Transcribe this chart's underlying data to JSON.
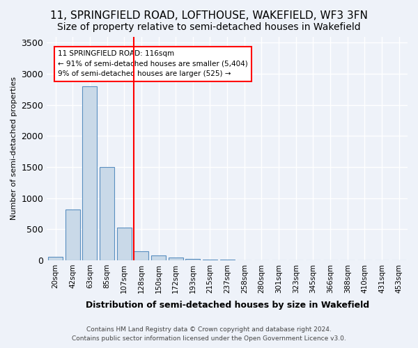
{
  "title": "11, SPRINGFIELD ROAD, LOFTHOUSE, WAKEFIELD, WF3 3FN",
  "subtitle": "Size of property relative to semi-detached houses in Wakefield",
  "xlabel": "Distribution of semi-detached houses by size in Wakefield",
  "ylabel": "Number of semi-detached properties",
  "footer_line1": "Contains HM Land Registry data © Crown copyright and database right 2024.",
  "footer_line2": "Contains public sector information licensed under the Open Government Licence v3.0.",
  "bin_labels": [
    "20sqm",
    "42sqm",
    "63sqm",
    "85sqm",
    "107sqm",
    "128sqm",
    "150sqm",
    "172sqm",
    "193sqm",
    "215sqm",
    "237sqm",
    "258sqm",
    "280sqm",
    "301sqm",
    "323sqm",
    "345sqm",
    "366sqm",
    "388sqm",
    "410sqm",
    "431sqm",
    "453sqm"
  ],
  "bar_values": [
    50,
    820,
    2800,
    1500,
    530,
    150,
    75,
    40,
    20,
    8,
    5,
    3,
    2,
    1,
    1,
    0,
    0,
    0,
    0,
    0,
    0
  ],
  "bar_color": "#c9d9e8",
  "bar_edge_color": "#5a8fc0",
  "property_line_x": 4.55,
  "property_size": "116sqm",
  "smaller_pct": 91,
  "smaller_count": "5,404",
  "larger_pct": 9,
  "larger_count": 525,
  "annotation_text_line1": "11 SPRINGFIELD ROAD: 116sqm",
  "annotation_text_line2": "← 91% of semi-detached houses are smaller (5,404)",
  "annotation_text_line3": "9% of semi-detached houses are larger (525) →",
  "ylim": [
    0,
    3600
  ],
  "background_color": "#eef2f9",
  "grid_color": "#ffffff",
  "title_fontsize": 11,
  "subtitle_fontsize": 10
}
